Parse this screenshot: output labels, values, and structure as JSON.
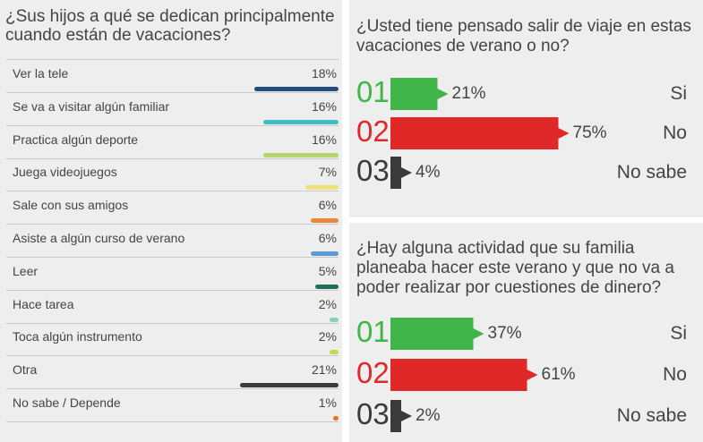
{
  "left_panel": {
    "question": "¿Sus hijos a qué se dedican principalmente cuando están de vacaciones?"
  },
  "right_top": {
    "question": "¿Usted tiene pensado salir de viaje en estas vacaciones de verano o no?"
  },
  "right_bottom": {
    "question": "¿Hay alguna actividad que su familia planeaba hacer este verano y que no va a poder realizar por cuestiones de dinero?"
  },
  "chart_data": [
    {
      "type": "bar",
      "title": "¿Sus hijos a qué se dedican principalmente cuando están de vacaciones?",
      "categories": [
        "Ver la tele",
        "Se va a visitar algún familiar",
        "Practica algún deporte",
        "Juega videojuegos",
        "Sale con sus amigos",
        "Asiste a algún curso de verano",
        "Leer",
        "Hace tarea",
        "Toca algún instrumento",
        "Otra",
        "No sabe / Depende"
      ],
      "values": [
        18,
        16,
        16,
        7,
        6,
        6,
        5,
        2,
        2,
        21,
        1
      ],
      "labels": [
        "18%",
        "16%",
        "16%",
        "7%",
        "6%",
        "6%",
        "5%",
        "2%",
        "2%",
        "21%",
        "1%"
      ],
      "colors": [
        "#1f4e79",
        "#3bbfc4",
        "#b5d56a",
        "#f0e27a",
        "#e8893a",
        "#5b9bd5",
        "#1e6e5e",
        "#88cfc0",
        "#c5d94a",
        "#3a3a3a",
        "#e8722a"
      ],
      "xlim": [
        0,
        21
      ]
    },
    {
      "type": "bar",
      "title": "¿Usted tiene pensado salir de viaje en estas vacaciones de verano o no?",
      "numbers": [
        "01",
        "02",
        "03"
      ],
      "categories": [
        "Si",
        "No",
        "No sabe"
      ],
      "values": [
        21,
        75,
        4
      ],
      "labels": [
        "21%",
        "75%",
        "4%"
      ],
      "colors": [
        "#3fb54a",
        "#e02828",
        "#3a3a3a"
      ],
      "xlim": [
        0,
        100
      ]
    },
    {
      "type": "bar",
      "title": "¿Hay alguna actividad que su familia planeaba hacer este verano y que no va a poder realizar por cuestiones de dinero?",
      "numbers": [
        "01",
        "02",
        "03"
      ],
      "categories": [
        "Si",
        "No",
        "No sabe"
      ],
      "values": [
        37,
        61,
        2
      ],
      "labels": [
        "37%",
        "61%",
        "2%"
      ],
      "colors": [
        "#3fb54a",
        "#e02828",
        "#3a3a3a"
      ],
      "xlim": [
        0,
        100
      ]
    }
  ]
}
